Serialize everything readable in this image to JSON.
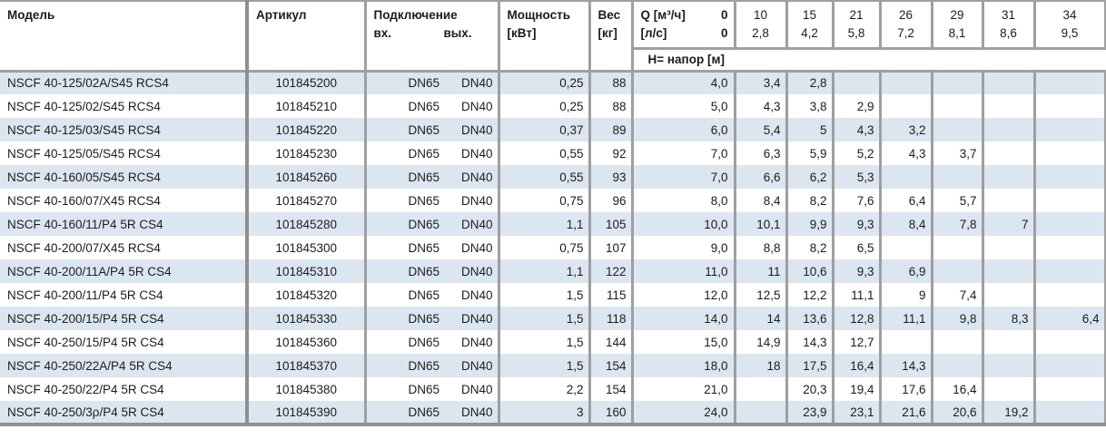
{
  "table": {
    "columns": {
      "model": "Модель",
      "sku": "Артикул",
      "connection": "Подключение",
      "inlet": "вх.",
      "outlet": "вых.",
      "power_line1": "Мощность",
      "power_line2": "[кВт]",
      "weight_line1": "Вес",
      "weight_line2": "[кг]",
      "q_m3h_label": "Q [м³/ч]",
      "q_m3h_zero": "0",
      "q_ls_label": "[л/с]",
      "q_ls_zero": "0",
      "head_label": "Н= напор [м]"
    },
    "q_columns": [
      {
        "m3h": "10",
        "ls": "2,8"
      },
      {
        "m3h": "15",
        "ls": "4,2"
      },
      {
        "m3h": "21",
        "ls": "5,8"
      },
      {
        "m3h": "26",
        "ls": "7,2"
      },
      {
        "m3h": "29",
        "ls": "8,1"
      },
      {
        "m3h": "31",
        "ls": "8,6"
      },
      {
        "m3h": "34",
        "ls": "9,5"
      }
    ],
    "rows": [
      {
        "model": "NSCF 40-125/02A/S45 RCS4",
        "sku": "101845200",
        "inlet": "DN65",
        "outlet": "DN40",
        "power": "0,25",
        "weight": "88",
        "heads": [
          "4,0",
          "3,4",
          "2,8",
          "",
          "",
          "",
          "",
          ""
        ]
      },
      {
        "model": "NSCF 40-125/02/S45 RCS4",
        "sku": "101845210",
        "inlet": "DN65",
        "outlet": "DN40",
        "power": "0,25",
        "weight": "88",
        "heads": [
          "5,0",
          "4,3",
          "3,8",
          "2,9",
          "",
          "",
          "",
          ""
        ]
      },
      {
        "model": "NSCF 40-125/03/S45 RCS4",
        "sku": "101845220",
        "inlet": "DN65",
        "outlet": "DN40",
        "power": "0,37",
        "weight": "89",
        "heads": [
          "6,0",
          "5,4",
          "5",
          "4,3",
          "3,2",
          "",
          "",
          ""
        ]
      },
      {
        "model": "NSCF 40-125/05/S45 RCS4",
        "sku": "101845230",
        "inlet": "DN65",
        "outlet": "DN40",
        "power": "0,55",
        "weight": "92",
        "heads": [
          "7,0",
          "6,3",
          "5,9",
          "5,2",
          "4,3",
          "3,7",
          "",
          ""
        ]
      },
      {
        "model": "NSCF 40-160/05/S45 RCS4",
        "sku": "101845260",
        "inlet": "DN65",
        "outlet": "DN40",
        "power": "0,55",
        "weight": "93",
        "heads": [
          "7,0",
          "6,6",
          "6,2",
          "5,3",
          "",
          "",
          "",
          ""
        ]
      },
      {
        "model": "NSCF 40-160/07/X45 RCS4",
        "sku": "101845270",
        "inlet": "DN65",
        "outlet": "DN40",
        "power": "0,75",
        "weight": "96",
        "heads": [
          "8,0",
          "8,4",
          "8,2",
          "7,6",
          "6,4",
          "5,7",
          "",
          ""
        ]
      },
      {
        "model": "NSCF 40-160/11/P4 5R CS4",
        "sku": "101845280",
        "inlet": "DN65",
        "outlet": "DN40",
        "power": "1,1",
        "weight": "105",
        "heads": [
          "10,0",
          "10,1",
          "9,9",
          "9,3",
          "8,4",
          "7,8",
          "7",
          ""
        ]
      },
      {
        "model": "NSCF 40-200/07/X45 RCS4",
        "sku": "101845300",
        "inlet": "DN65",
        "outlet": "DN40",
        "power": "0,75",
        "weight": "107",
        "heads": [
          "9,0",
          "8,8",
          "8,2",
          "6,5",
          "",
          "",
          "",
          ""
        ]
      },
      {
        "model": "NSCF 40-200/11A/P4 5R CS4",
        "sku": "101845310",
        "inlet": "DN65",
        "outlet": "DN40",
        "power": "1,1",
        "weight": "122",
        "heads": [
          "11,0",
          "11",
          "10,6",
          "9,3",
          "6,9",
          "",
          "",
          ""
        ]
      },
      {
        "model": "NSCF 40-200/11/P4 5R CS4",
        "sku": "101845320",
        "inlet": "DN65",
        "outlet": "DN40",
        "power": "1,5",
        "weight": "115",
        "heads": [
          "12,0",
          "12,5",
          "12,2",
          "11,1",
          "9",
          "7,4",
          "",
          ""
        ]
      },
      {
        "model": "NSCF 40-200/15/P4 5R CS4",
        "sku": "101845330",
        "inlet": "DN65",
        "outlet": "DN40",
        "power": "1,5",
        "weight": "118",
        "heads": [
          "14,0",
          "14",
          "13,6",
          "12,8",
          "11,1",
          "9,8",
          "8,3",
          "6,4"
        ]
      },
      {
        "model": "NSCF 40-250/15/P4 5R CS4",
        "sku": "101845360",
        "inlet": "DN65",
        "outlet": "DN40",
        "power": "1,5",
        "weight": "144",
        "heads": [
          "15,0",
          "14,9",
          "14,3",
          "12,7",
          "",
          "",
          "",
          ""
        ]
      },
      {
        "model": "NSCF 40-250/22A/P4 5R CS4",
        "sku": "101845370",
        "inlet": "DN65",
        "outlet": "DN40",
        "power": "1,5",
        "weight": "154",
        "heads": [
          "18,0",
          "18",
          "17,5",
          "16,4",
          "14,3",
          "",
          "",
          ""
        ]
      },
      {
        "model": "NSCF 40-250/22/P4 5R CS4",
        "sku": "101845380",
        "inlet": "DN65",
        "outlet": "DN40",
        "power": "2,2",
        "weight": "154",
        "heads": [
          "21,0",
          "",
          "20,3",
          "19,4",
          "17,6",
          "16,4",
          "",
          ""
        ]
      },
      {
        "model": "NSCF 40-250/3ρ/P4 5R CS4",
        "sku": "101845390",
        "inlet": "DN65",
        "outlet": "DN40",
        "power": "3",
        "weight": "160",
        "heads": [
          "24,0",
          "",
          "23,9",
          "23,1",
          "21,6",
          "20,6",
          "19,2",
          ""
        ]
      }
    ]
  },
  "colors": {
    "row_alt": "#dce6f1",
    "border": "#9f9f9f",
    "text": "#1c1c1c"
  }
}
